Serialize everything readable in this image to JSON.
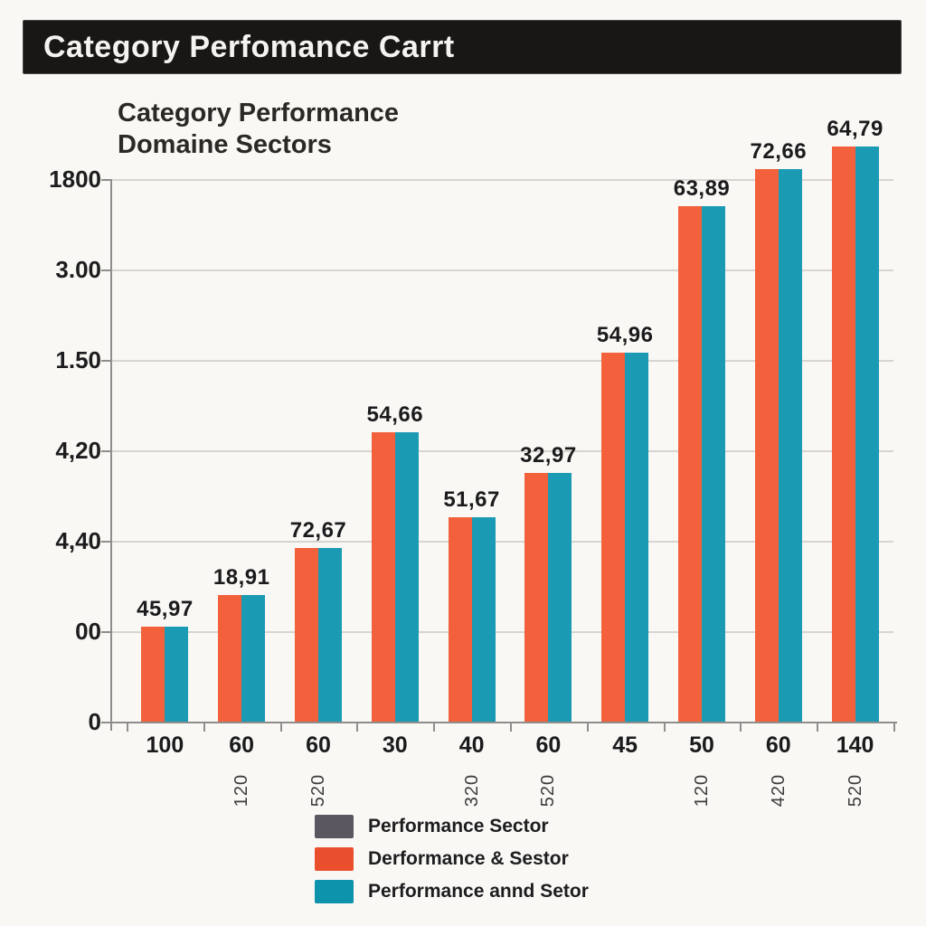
{
  "banner": {
    "title": "Category Perfomance Carrt"
  },
  "chart": {
    "title_line1": "Category Performance",
    "title_line2": "Domaine Sectors",
    "y_tick_labels_top_to_bottom": [
      "1800",
      "3.00",
      "1.50",
      "4,20",
      "4,40",
      "00",
      "0"
    ],
    "groups": [
      {
        "x_label": "100",
        "x_sublabel": "",
        "value_label": "45,97",
        "height_units": 1.05
      },
      {
        "x_label": "60",
        "x_sublabel": "120",
        "value_label": "18,91",
        "height_units": 1.4
      },
      {
        "x_label": "60",
        "x_sublabel": "520",
        "value_label": "72,67",
        "height_units": 1.92
      },
      {
        "x_label": "30",
        "x_sublabel": "",
        "value_label": "54,66",
        "height_units": 3.2
      },
      {
        "x_label": "40",
        "x_sublabel": "320",
        "value_label": "51,67",
        "height_units": 2.26
      },
      {
        "x_label": "60",
        "x_sublabel": "520",
        "value_label": "32,97",
        "height_units": 2.75
      },
      {
        "x_label": "45",
        "x_sublabel": "",
        "value_label": "54,96",
        "height_units": 4.08
      },
      {
        "x_label": "50",
        "x_sublabel": "120",
        "value_label": "63,89",
        "height_units": 5.7
      },
      {
        "x_label": "60",
        "x_sublabel": "420",
        "value_label": "72,66",
        "height_units": 6.11
      },
      {
        "x_label": "140",
        "x_sublabel": "520",
        "value_label": "64,79",
        "height_units": 6.36
      }
    ],
    "colors": {
      "bar_orange": "#f2613b",
      "bar_teal": "#1b9ab4",
      "gridline": "#d8d4d0",
      "axis": "#8f8d8b",
      "background": "#faf8f5",
      "banner_bg": "#191716",
      "banner_text": "#f4f3f1"
    }
  },
  "legend": [
    {
      "label": "Performance Sector",
      "color": "#5a5760"
    },
    {
      "label": "Derformance & Sestor",
      "color": "#ea4f2d"
    },
    {
      "label": "Performance annd Setor",
      "color": "#0d94ac"
    }
  ],
  "chart_data": {
    "type": "bar",
    "title": "Category Performance Domaine Sectors",
    "categories": [
      "100",
      "60",
      "60",
      "30",
      "40",
      "60",
      "45",
      "50",
      "60",
      "140"
    ],
    "category_sublabels": [
      "",
      "120",
      "520",
      "",
      "320",
      "520",
      "",
      "120",
      "420",
      "520"
    ],
    "bar_value_labels": [
      "45,97",
      "18,91",
      "72,67",
      "54,66",
      "51,67",
      "32,97",
      "54,96",
      "63,89",
      "72,66",
      "64,79"
    ],
    "series": [
      {
        "name": "Derformance & Sestor",
        "color": "#f2613b",
        "values_axis_units": [
          1.05,
          1.4,
          1.92,
          3.2,
          2.26,
          2.75,
          4.08,
          5.7,
          6.11,
          6.36
        ]
      },
      {
        "name": "Performance annd Setor",
        "color": "#1b9ab4",
        "values_axis_units": [
          1.05,
          1.4,
          1.92,
          3.2,
          2.26,
          2.75,
          4.08,
          5.7,
          6.11,
          6.36
        ]
      }
    ],
    "y_tick_labels_top_to_bottom": [
      "1800",
      "3.00",
      "1.50",
      "4,20",
      "4,40",
      "00",
      "0"
    ],
    "ylim_axis_units": [
      0,
      6
    ],
    "grid": true,
    "legend_position": "bottom",
    "notes": "Paired orange/teal bars of equal height per category; heights in gridline units (1 unit = one gridline spacing); top two groups exceed the top gridline."
  }
}
